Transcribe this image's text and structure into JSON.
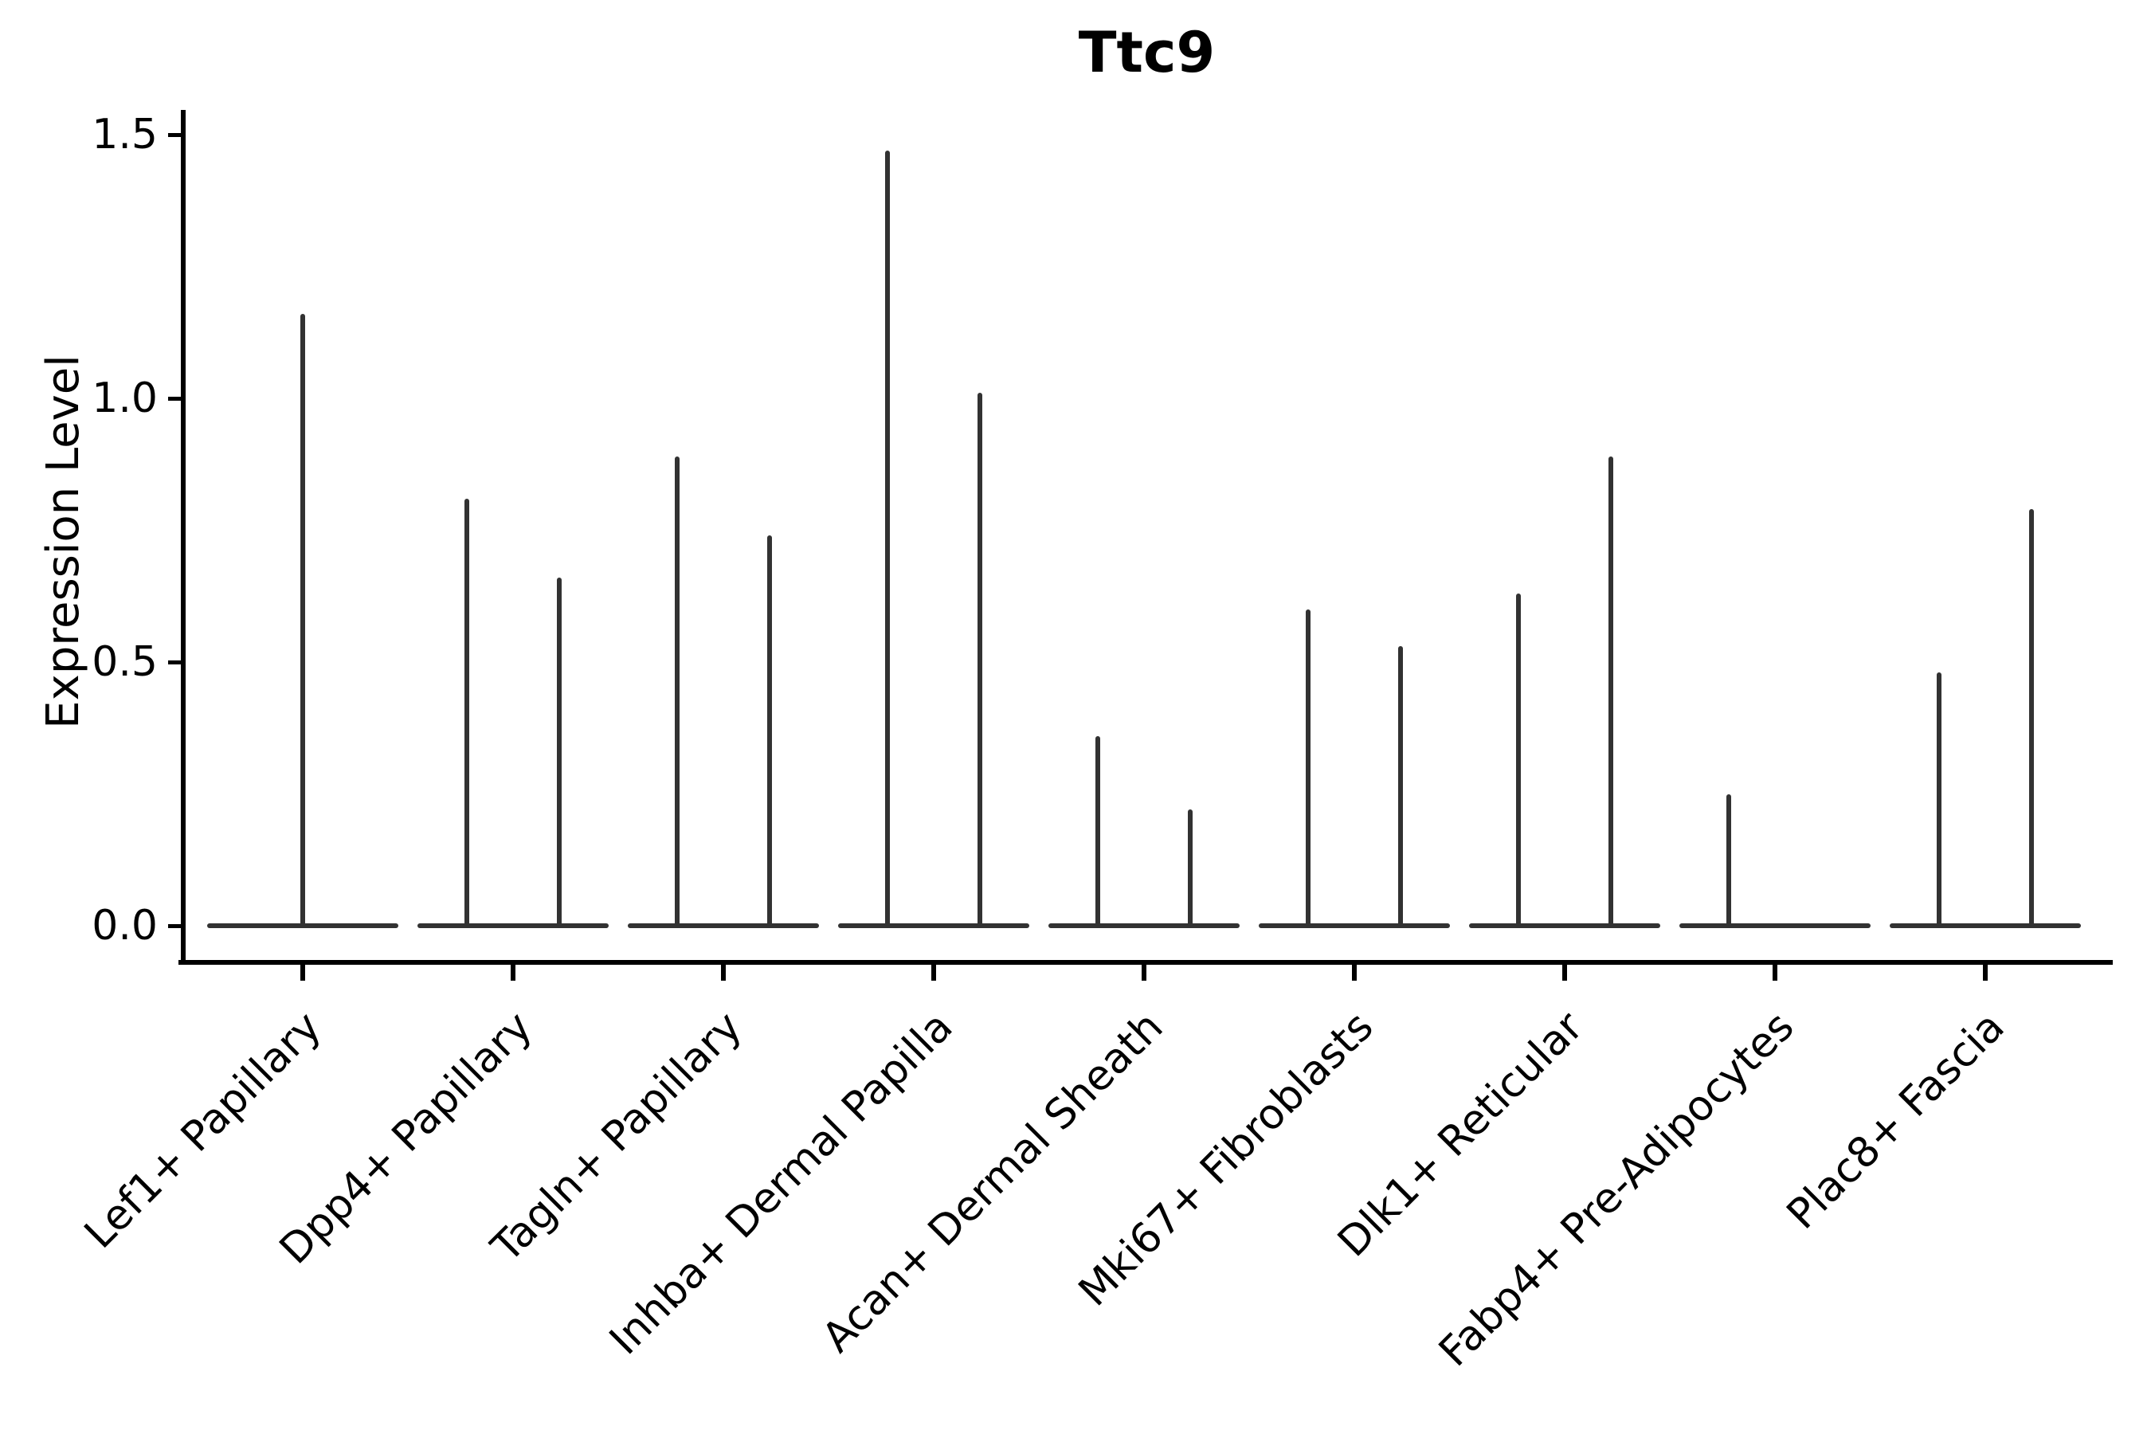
{
  "title": "Ttc9",
  "y_axis": {
    "label": "Expression Level",
    "tick_labels": [
      "1.5",
      "1.0",
      "0.5",
      "0.0"
    ]
  },
  "chart_data": {
    "type": "violin",
    "title": "Ttc9",
    "ylabel": "Expression Level",
    "xlabel": "",
    "ylim": [
      0,
      1.55
    ],
    "yticks": [
      0.0,
      0.5,
      1.0,
      1.5
    ],
    "grid": false,
    "legend_position": "none",
    "violin_color": "#323232",
    "baseline_expression": 0.0,
    "categories": [
      "Lef1+ Papillary",
      "Dpp4+ Papillary",
      "Tagln+ Papillary",
      "Inhba+ Dermal Papilla",
      "Acan+ Dermal Sheath",
      "Mki67+ Fibroblasts",
      "Dlk1+ Reticular",
      "Fabp4+ Pre-Adipocytes",
      "Plac8+ Fascia"
    ],
    "groups": [
      {
        "category": "Lef1+ Papillary",
        "violins": [
          {
            "position": "center",
            "max_expression": 1.16
          }
        ]
      },
      {
        "category": "Dpp4+ Papillary",
        "violins": [
          {
            "position": "left",
            "max_expression": 0.81
          },
          {
            "position": "right",
            "max_expression": 0.66
          }
        ]
      },
      {
        "category": "Tagln+ Papillary",
        "violins": [
          {
            "position": "left",
            "max_expression": 0.89
          },
          {
            "position": "right",
            "max_expression": 0.74
          }
        ]
      },
      {
        "category": "Inhba+ Dermal Papilla",
        "violins": [
          {
            "position": "left",
            "max_expression": 1.47
          },
          {
            "position": "right",
            "max_expression": 1.01
          }
        ]
      },
      {
        "category": "Acan+ Dermal Sheath",
        "violins": [
          {
            "position": "left",
            "max_expression": 0.36
          },
          {
            "position": "right",
            "max_expression": 0.22
          }
        ]
      },
      {
        "category": "Mki67+ Fibroblasts",
        "violins": [
          {
            "position": "left",
            "max_expression": 0.6
          },
          {
            "position": "right",
            "max_expression": 0.53
          }
        ]
      },
      {
        "category": "Dlk1+ Reticular",
        "violins": [
          {
            "position": "left",
            "max_expression": 0.63
          },
          {
            "position": "right",
            "max_expression": 0.89
          }
        ]
      },
      {
        "category": "Fabp4+ Pre-Adipocytes",
        "violins": [
          {
            "position": "left",
            "max_expression": 0.25
          }
        ]
      },
      {
        "category": "Plac8+ Fascia",
        "violins": [
          {
            "position": "left",
            "max_expression": 0.48
          },
          {
            "position": "right",
            "max_expression": 0.79
          }
        ]
      }
    ]
  }
}
